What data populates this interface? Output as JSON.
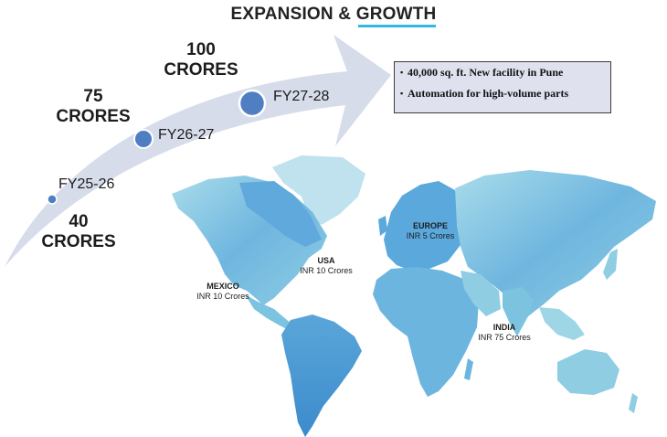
{
  "title": {
    "part1": "EXPANSION & ",
    "part2": "GROWTH"
  },
  "milestones": [
    {
      "period": "FY25-26",
      "amount_line1": "40",
      "amount_line2": "CRORES"
    },
    {
      "period": "FY26-27",
      "amount_line1": "75",
      "amount_line2": "CRORES"
    },
    {
      "period": "FY27-28",
      "amount_line1": "100",
      "amount_line2": "CRORES"
    }
  ],
  "plans": {
    "bullet_icon": "bullet-dot",
    "items": [
      "40,000 sq. ft. New facility in Pune",
      "Automation for high-volume parts"
    ]
  },
  "regions": [
    {
      "name": "USA",
      "value": "INR 10 Crores"
    },
    {
      "name": "MEXICO",
      "value": "INR 10 Crores"
    },
    {
      "name": "EUROPE",
      "value": "INR 5 Crores"
    },
    {
      "name": "INDIA",
      "value": "INR 75 Crores"
    }
  ],
  "colors": {
    "arrow": "#d6dcea",
    "dot": "#4f7fc2",
    "accent": "#34b8e0",
    "map_light": "#9fd6e6",
    "map_dark": "#3f8fcf",
    "panel": "#dfe1ef"
  }
}
